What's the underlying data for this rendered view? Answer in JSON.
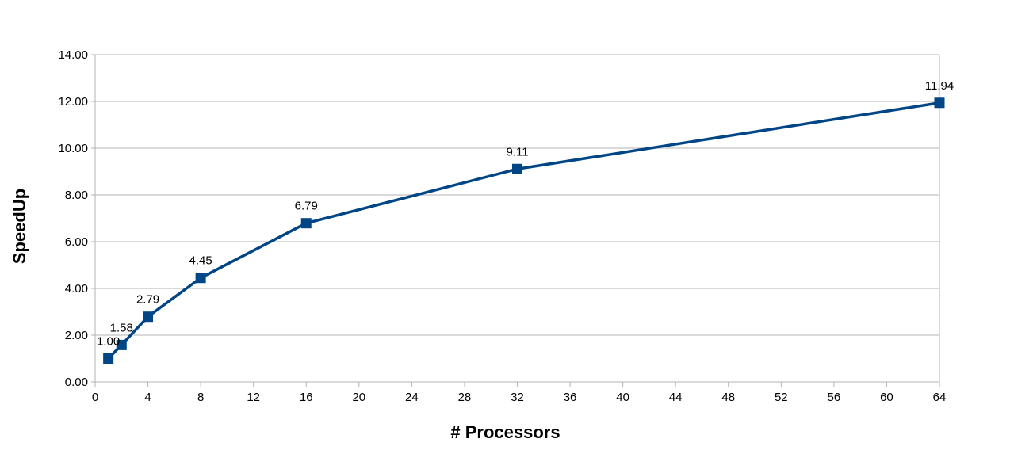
{
  "chart_data": {
    "type": "line",
    "title": "",
    "xlabel": "# Processors",
    "ylabel": "SpeedUp",
    "xlim": [
      0,
      64
    ],
    "ylim": [
      0,
      14
    ],
    "x_ticks": [
      0,
      4,
      8,
      12,
      16,
      20,
      24,
      28,
      32,
      36,
      40,
      44,
      48,
      52,
      56,
      60,
      64
    ],
    "y_ticks": [
      "0.00",
      "2.00",
      "4.00",
      "6.00",
      "8.00",
      "10.00",
      "12.00",
      "14.00"
    ],
    "grid": "horizontal",
    "legend": "none",
    "series": [
      {
        "color": "#004586",
        "marker": "square",
        "points": [
          {
            "x": 1,
            "y": 1.0,
            "label": "1.00"
          },
          {
            "x": 2,
            "y": 1.58,
            "label": "1.58"
          },
          {
            "x": 4,
            "y": 2.79,
            "label": "2.79"
          },
          {
            "x": 8,
            "y": 4.45,
            "label": "4.45"
          },
          {
            "x": 16,
            "y": 6.79,
            "label": "6.79"
          },
          {
            "x": 32,
            "y": 9.11,
            "label": "9.11"
          },
          {
            "x": 64,
            "y": 11.94,
            "label": "11.94"
          }
        ]
      }
    ]
  }
}
